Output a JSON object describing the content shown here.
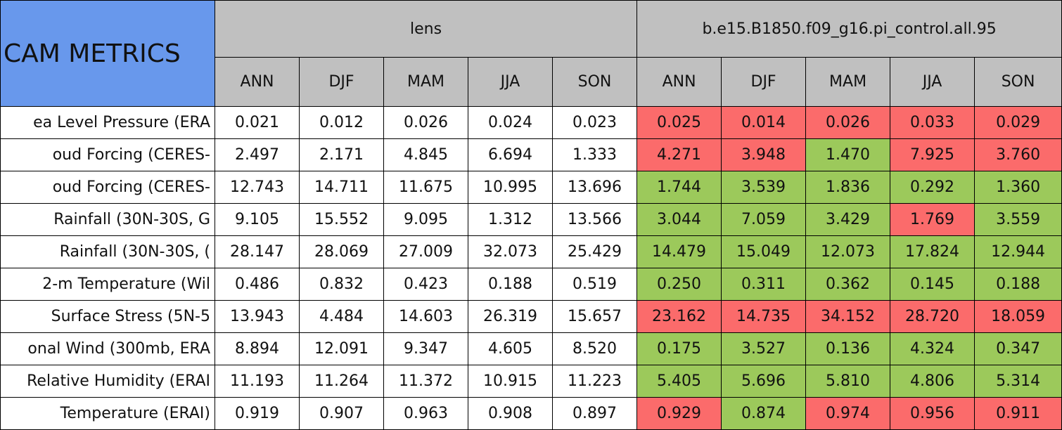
{
  "header": {
    "title": "CAM METRICS",
    "groups": [
      "lens",
      "b.e15.B1850.f09_g16.pi_control.all.95"
    ],
    "seasons": [
      "ANN",
      "DJF",
      "MAM",
      "JJA",
      "SON"
    ]
  },
  "legend_colors": {
    "worse": "#fb6b6b",
    "better": "#9cc95b"
  },
  "table": {
    "rows": [
      {
        "label": "ea Level Pressure (ERA",
        "lens": [
          "0.021",
          "0.012",
          "0.026",
          "0.024",
          "0.023"
        ],
        "control": [
          "0.025",
          "0.014",
          "0.026",
          "0.033",
          "0.029"
        ],
        "control_status": [
          "worse",
          "worse",
          "worse",
          "worse",
          "worse"
        ]
      },
      {
        "label": "oud Forcing (CERES-",
        "lens": [
          "2.497",
          "2.171",
          "4.845",
          "6.694",
          "1.333"
        ],
        "control": [
          "4.271",
          "3.948",
          "1.470",
          "7.925",
          "3.760"
        ],
        "control_status": [
          "worse",
          "worse",
          "better",
          "worse",
          "worse"
        ]
      },
      {
        "label": "oud Forcing (CERES-",
        "lens": [
          "12.743",
          "14.711",
          "11.675",
          "10.995",
          "13.696"
        ],
        "control": [
          "1.744",
          "3.539",
          "1.836",
          "0.292",
          "1.360"
        ],
        "control_status": [
          "better",
          "better",
          "better",
          "better",
          "better"
        ]
      },
      {
        "label": "Rainfall (30N-30S, G",
        "lens": [
          "9.105",
          "15.552",
          "9.095",
          "1.312",
          "13.566"
        ],
        "control": [
          "3.044",
          "7.059",
          "3.429",
          "1.769",
          "3.559"
        ],
        "control_status": [
          "better",
          "better",
          "better",
          "worse",
          "better"
        ]
      },
      {
        "label": "Rainfall (30N-30S, (",
        "lens": [
          "28.147",
          "28.069",
          "27.009",
          "32.073",
          "25.429"
        ],
        "control": [
          "14.479",
          "15.049",
          "12.073",
          "17.824",
          "12.944"
        ],
        "control_status": [
          "better",
          "better",
          "better",
          "better",
          "better"
        ]
      },
      {
        "label": "2-m Temperature (Wil",
        "lens": [
          "0.486",
          "0.832",
          "0.423",
          "0.188",
          "0.519"
        ],
        "control": [
          "0.250",
          "0.311",
          "0.362",
          "0.145",
          "0.188"
        ],
        "control_status": [
          "better",
          "better",
          "better",
          "better",
          "better"
        ]
      },
      {
        "label": "Surface Stress (5N-5",
        "lens": [
          "13.943",
          "4.484",
          "14.603",
          "26.319",
          "15.657"
        ],
        "control": [
          "23.162",
          "14.735",
          "34.152",
          "28.720",
          "18.059"
        ],
        "control_status": [
          "worse",
          "worse",
          "worse",
          "worse",
          "worse"
        ]
      },
      {
        "label": "onal Wind (300mb, ERA",
        "lens": [
          "8.894",
          "12.091",
          "9.347",
          "4.605",
          "8.520"
        ],
        "control": [
          "0.175",
          "3.527",
          "0.136",
          "4.324",
          "0.347"
        ],
        "control_status": [
          "better",
          "better",
          "better",
          "better",
          "better"
        ]
      },
      {
        "label": "Relative Humidity (ERAI",
        "lens": [
          "11.193",
          "11.264",
          "11.372",
          "10.915",
          "11.223"
        ],
        "control": [
          "5.405",
          "5.696",
          "5.810",
          "4.806",
          "5.314"
        ],
        "control_status": [
          "better",
          "better",
          "better",
          "better",
          "better"
        ]
      },
      {
        "label": "Temperature (ERAI)",
        "lens": [
          "0.919",
          "0.907",
          "0.963",
          "0.908",
          "0.897"
        ],
        "control": [
          "0.929",
          "0.874",
          "0.974",
          "0.956",
          "0.911"
        ],
        "control_status": [
          "worse",
          "better",
          "worse",
          "worse",
          "worse"
        ]
      }
    ]
  }
}
